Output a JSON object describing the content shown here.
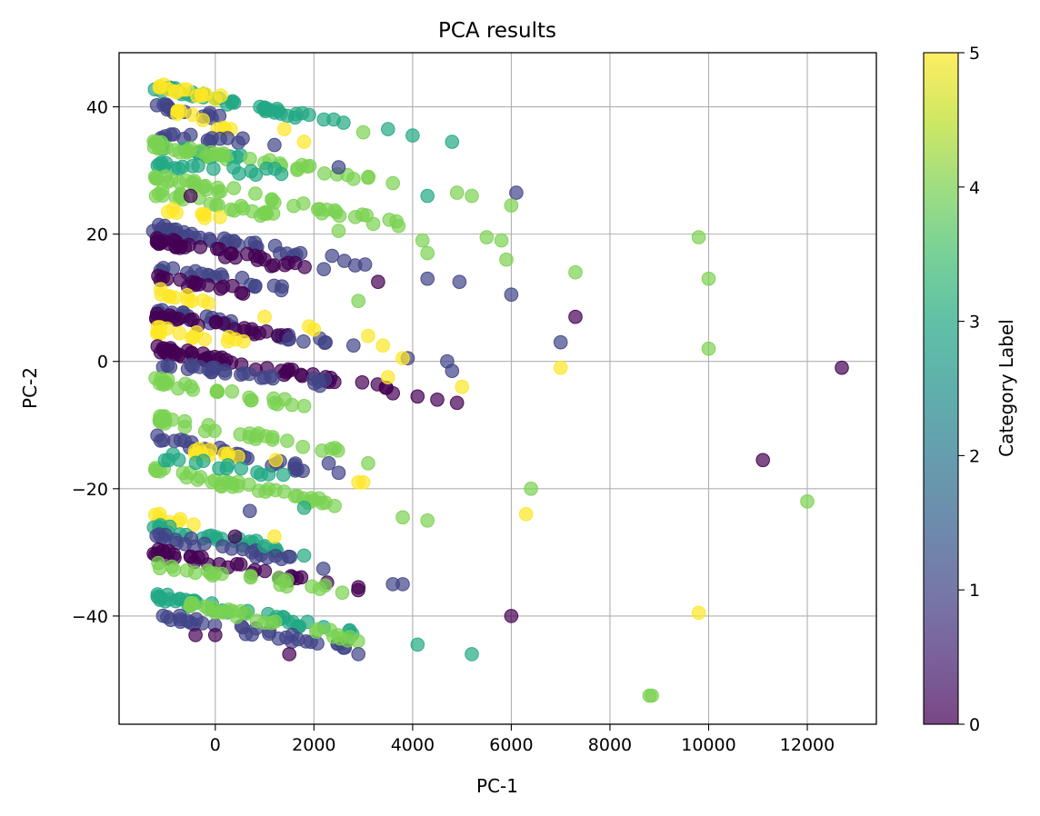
{
  "chart_data": {
    "type": "scatter",
    "title": "PCA results",
    "xlabel": "PC-1",
    "ylabel": "PC-2",
    "xlim": [
      -1950,
      13400
    ],
    "ylim": [
      -57,
      48.5
    ],
    "xticks": [
      0,
      2000,
      4000,
      6000,
      8000,
      10000,
      12000
    ],
    "yticks": [
      -40,
      -20,
      0,
      20,
      40
    ],
    "grid": true,
    "colorbar": {
      "label": "Category Label",
      "min": 0,
      "max": 5,
      "ticks": [
        0,
        1,
        2,
        3,
        4,
        5
      ],
      "colormap": "viridis"
    },
    "marker_alpha": 0.7,
    "clusters": [
      {
        "category": 3,
        "x": [
          -1200,
          1900
        ],
        "y": [
          43,
          38.5
        ],
        "n": 38
      },
      {
        "category": 5,
        "x": [
          -1100,
          500
        ],
        "y": [
          43,
          40.5
        ],
        "n": 14
      },
      {
        "category": 1,
        "x": [
          -1200,
          600
        ],
        "y": [
          40,
          38
        ],
        "n": 14
      },
      {
        "category": 5,
        "x": [
          -1000,
          300
        ],
        "y": [
          39.5,
          36.5
        ],
        "n": 10
      },
      {
        "category": 1,
        "x": [
          -1200,
          700
        ],
        "y": [
          35.5,
          34.5
        ],
        "n": 14
      },
      {
        "category": 3,
        "x": [
          -1200,
          500
        ],
        "y": [
          34,
          32
        ],
        "n": 14
      },
      {
        "category": 4,
        "x": [
          -1200,
          3200
        ],
        "y": [
          34,
          28.5
        ],
        "n": 40
      },
      {
        "category": 3,
        "x": [
          -1200,
          1500
        ],
        "y": [
          31,
          29.5
        ],
        "n": 18
      },
      {
        "category": 4,
        "x": [
          -1200,
          3700
        ],
        "y": [
          29,
          21.5
        ],
        "n": 40
      },
      {
        "category": 4,
        "x": [
          -1200,
          1400
        ],
        "y": [
          26.5,
          22.5
        ],
        "n": 24
      },
      {
        "category": 5,
        "x": [
          -900,
          200
        ],
        "y": [
          23.5,
          22
        ],
        "n": 8
      },
      {
        "category": 1,
        "x": [
          -1200,
          3500
        ],
        "y": [
          21,
          14.5
        ],
        "n": 40
      },
      {
        "category": 0,
        "x": [
          -1200,
          1900
        ],
        "y": [
          19,
          14.5
        ],
        "n": 34
      },
      {
        "category": 1,
        "x": [
          -1100,
          1500
        ],
        "y": [
          14.5,
          11.5
        ],
        "n": 20
      },
      {
        "category": 0,
        "x": [
          -1200,
          800
        ],
        "y": [
          13,
          11
        ],
        "n": 16
      },
      {
        "category": 5,
        "x": [
          -1100,
          0
        ],
        "y": [
          11,
          9
        ],
        "n": 10
      },
      {
        "category": 1,
        "x": [
          -1200,
          2500
        ],
        "y": [
          8,
          2.5
        ],
        "n": 30
      },
      {
        "category": 0,
        "x": [
          -1200,
          1600
        ],
        "y": [
          7,
          4
        ],
        "n": 24
      },
      {
        "category": 5,
        "x": [
          -1200,
          800
        ],
        "y": [
          5,
          3
        ],
        "n": 16
      },
      {
        "category": 0,
        "x": [
          -1200,
          3500
        ],
        "y": [
          2,
          -4.5
        ],
        "n": 50
      },
      {
        "category": 1,
        "x": [
          -1000,
          3300
        ],
        "y": [
          -0.5,
          -4.5
        ],
        "n": 26
      },
      {
        "category": 4,
        "x": [
          -1200,
          1800
        ],
        "y": [
          -3,
          -7
        ],
        "n": 24
      },
      {
        "category": 4,
        "x": [
          -1200,
          2500
        ],
        "y": [
          -9,
          -14
        ],
        "n": 30
      },
      {
        "category": 1,
        "x": [
          -1200,
          1900
        ],
        "y": [
          -12,
          -17
        ],
        "n": 28
      },
      {
        "category": 5,
        "x": [
          -400,
          1600
        ],
        "y": [
          -14,
          -16
        ],
        "n": 12
      },
      {
        "category": 4,
        "x": [
          -1200,
          2800
        ],
        "y": [
          -17,
          -23
        ],
        "n": 36
      },
      {
        "category": 3,
        "x": [
          -1000,
          1500
        ],
        "y": [
          -15,
          -18
        ],
        "n": 14
      },
      {
        "category": 5,
        "x": [
          -1200,
          200
        ],
        "y": [
          -24.5,
          -26.5
        ],
        "n": 8
      },
      {
        "category": 3,
        "x": [
          -1200,
          1700
        ],
        "y": [
          -26,
          -30
        ],
        "n": 24
      },
      {
        "category": 1,
        "x": [
          -1200,
          2200
        ],
        "y": [
          -27.5,
          -32
        ],
        "n": 24
      },
      {
        "category": 0,
        "x": [
          -1200,
          3200
        ],
        "y": [
          -30,
          -36.5
        ],
        "n": 32
      },
      {
        "category": 4,
        "x": [
          -1200,
          2700
        ],
        "y": [
          -32,
          -36
        ],
        "n": 22
      },
      {
        "category": 3,
        "x": [
          -1200,
          3000
        ],
        "y": [
          -37,
          -43
        ],
        "n": 40
      },
      {
        "category": 1,
        "x": [
          -1100,
          2700
        ],
        "y": [
          -40,
          -45
        ],
        "n": 32
      },
      {
        "category": 4,
        "x": [
          -600,
          3100
        ],
        "y": [
          -38,
          -44
        ],
        "n": 28
      }
    ],
    "points": [
      {
        "x": 4800,
        "y": 34.5,
        "c": 3
      },
      {
        "x": 4000,
        "y": 35.5,
        "c": 3
      },
      {
        "x": 3500,
        "y": 36.5,
        "c": 3
      },
      {
        "x": 3000,
        "y": 36,
        "c": 4
      },
      {
        "x": 2600,
        "y": 37.5,
        "c": 3
      },
      {
        "x": 2400,
        "y": 38,
        "c": 3
      },
      {
        "x": 2200,
        "y": 38,
        "c": 3
      },
      {
        "x": 1800,
        "y": 34.5,
        "c": 5
      },
      {
        "x": 1400,
        "y": 36.5,
        "c": 5
      },
      {
        "x": 1200,
        "y": 34,
        "c": 1
      },
      {
        "x": 2500,
        "y": 30.5,
        "c": 1
      },
      {
        "x": 6100,
        "y": 26.5,
        "c": 1
      },
      {
        "x": 6000,
        "y": 24.5,
        "c": 4
      },
      {
        "x": 4900,
        "y": 26.5,
        "c": 4
      },
      {
        "x": 5200,
        "y": 26,
        "c": 4
      },
      {
        "x": 4300,
        "y": 26,
        "c": 3
      },
      {
        "x": 3600,
        "y": 28,
        "c": 4
      },
      {
        "x": 2500,
        "y": 20.5,
        "c": 4
      },
      {
        "x": 4200,
        "y": 19,
        "c": 4
      },
      {
        "x": 4300,
        "y": 17,
        "c": 4
      },
      {
        "x": 5500,
        "y": 19.5,
        "c": 4
      },
      {
        "x": 5800,
        "y": 19,
        "c": 4
      },
      {
        "x": 5900,
        "y": 16,
        "c": 4
      },
      {
        "x": 7300,
        "y": 14,
        "c": 4
      },
      {
        "x": 9800,
        "y": 19.5,
        "c": 4
      },
      {
        "x": 10000,
        "y": 13,
        "c": 4
      },
      {
        "x": 10000,
        "y": 2,
        "c": 4
      },
      {
        "x": 4300,
        "y": 13,
        "c": 1
      },
      {
        "x": 4950,
        "y": 12.5,
        "c": 1
      },
      {
        "x": 6000,
        "y": 10.5,
        "c": 1
      },
      {
        "x": 7000,
        "y": 3,
        "c": 1
      },
      {
        "x": 7300,
        "y": 7,
        "c": 0
      },
      {
        "x": 3300,
        "y": 12.5,
        "c": 0
      },
      {
        "x": 2900,
        "y": 9.5,
        "c": 4
      },
      {
        "x": 1000,
        "y": 7,
        "c": 5
      },
      {
        "x": 2000,
        "y": 5,
        "c": 5
      },
      {
        "x": 3100,
        "y": 4,
        "c": 5
      },
      {
        "x": 3400,
        "y": 2.5,
        "c": 5
      },
      {
        "x": 2800,
        "y": 2.5,
        "c": 1
      },
      {
        "x": 3900,
        "y": 0.5,
        "c": 1
      },
      {
        "x": 4700,
        "y": 0,
        "c": 1
      },
      {
        "x": 4800,
        "y": -1.5,
        "c": 1
      },
      {
        "x": 3800,
        "y": 0.5,
        "c": 5
      },
      {
        "x": 3500,
        "y": -2.5,
        "c": 5
      },
      {
        "x": 5000,
        "y": -4,
        "c": 5
      },
      {
        "x": 7000,
        "y": -1,
        "c": 5
      },
      {
        "x": 12700,
        "y": -1,
        "c": 0
      },
      {
        "x": 4100,
        "y": -5.5,
        "c": 0
      },
      {
        "x": 4500,
        "y": -6,
        "c": 0
      },
      {
        "x": 4900,
        "y": -6.5,
        "c": 0
      },
      {
        "x": 3600,
        "y": -5,
        "c": 0
      },
      {
        "x": 1800,
        "y": -7,
        "c": 4
      },
      {
        "x": 2300,
        "y": -16,
        "c": 1
      },
      {
        "x": 2500,
        "y": -17.5,
        "c": 1
      },
      {
        "x": 3100,
        "y": -16,
        "c": 4
      },
      {
        "x": 3000,
        "y": -19,
        "c": 5
      },
      {
        "x": 2900,
        "y": -19,
        "c": 5
      },
      {
        "x": 3800,
        "y": -24.5,
        "c": 4
      },
      {
        "x": 4300,
        "y": -25,
        "c": 4
      },
      {
        "x": 6400,
        "y": -20,
        "c": 4
      },
      {
        "x": 6300,
        "y": -24,
        "c": 5
      },
      {
        "x": 11100,
        "y": -15.5,
        "c": 0
      },
      {
        "x": 12000,
        "y": -22,
        "c": 4
      },
      {
        "x": 1800,
        "y": -30.5,
        "c": 3
      },
      {
        "x": 3600,
        "y": -35,
        "c": 1
      },
      {
        "x": 3800,
        "y": -35,
        "c": 1
      },
      {
        "x": 1800,
        "y": -23,
        "c": 3
      },
      {
        "x": 6000,
        "y": -40,
        "c": 0
      },
      {
        "x": 9800,
        "y": -39.5,
        "c": 5
      },
      {
        "x": 4100,
        "y": -44.5,
        "c": 3
      },
      {
        "x": 5200,
        "y": -46,
        "c": 3
      },
      {
        "x": 2900,
        "y": -46,
        "c": 1
      },
      {
        "x": 1500,
        "y": -46,
        "c": 0
      },
      {
        "x": 8800,
        "y": -52.5,
        "c": 4
      },
      {
        "x": 8850,
        "y": -52.5,
        "c": 4
      },
      {
        "x": -400,
        "y": -43,
        "c": 0
      },
      {
        "x": 0,
        "y": -43,
        "c": 0
      },
      {
        "x": 1000,
        "y": -29,
        "c": 3
      },
      {
        "x": 400,
        "y": -27.5,
        "c": 0
      },
      {
        "x": 1200,
        "y": -27.5,
        "c": 5
      },
      {
        "x": 700,
        "y": -23.5,
        "c": 1
      },
      {
        "x": -500,
        "y": 26,
        "c": 0
      },
      {
        "x": 2200,
        "y": 14.5,
        "c": 1
      },
      {
        "x": 1000,
        "y": 16,
        "c": 0
      },
      {
        "x": 1900,
        "y": 5.5,
        "c": 5
      },
      {
        "x": 1500,
        "y": 3.5,
        "c": 1
      }
    ]
  }
}
